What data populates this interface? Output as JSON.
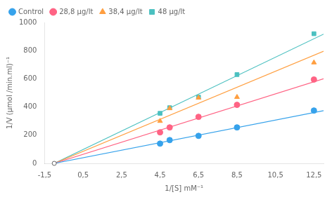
{
  "chart_data": {
    "type": "scatter",
    "xlabel": "1/[S] mM⁻¹",
    "ylabel": "1/V (μmol /min.ml)⁻¹",
    "xlim": [
      -1.5,
      13.0
    ],
    "ylim": [
      0,
      1000
    ],
    "xticks": [
      {
        "value": -1.5,
        "label": "-1,5"
      },
      {
        "value": 0.5,
        "label": "0,5"
      },
      {
        "value": 2.5,
        "label": "2,5"
      },
      {
        "value": 4.5,
        "label": "4,5"
      },
      {
        "value": 6.5,
        "label": "6,5"
      },
      {
        "value": 8.5,
        "label": "8,5"
      },
      {
        "value": 10.5,
        "label": "10,5"
      },
      {
        "value": 12.5,
        "label": "12,5"
      }
    ],
    "yticks": [
      0,
      200,
      400,
      600,
      800,
      1000
    ],
    "grid": false,
    "legend": "upper left",
    "convergence_point": {
      "x": -1.0,
      "y": 0,
      "color": "#666666"
    },
    "series": [
      {
        "name": "Control",
        "color": "#36a2eb",
        "marker": "o",
        "x": [
          4.5,
          5.0,
          6.5,
          8.5,
          12.5
        ],
        "values": [
          140,
          165,
          195,
          255,
          375
        ],
        "fit_x": [
          -1.0,
          13.0
        ],
        "fit_values": [
          0,
          374.0083997874
        ]
      },
      {
        "name": "28,8 μg/lt",
        "color": "#ff6384",
        "marker": "o",
        "x": [
          4.5,
          5.0,
          6.5,
          8.5,
          12.5
        ],
        "values": [
          220,
          255,
          330,
          415,
          595
        ],
        "fit_x": [
          -1.0,
          13.0
        ],
        "fit_values": [
          0,
          599.9231968814
        ]
      },
      {
        "name": "38,4 μg/lt",
        "color": "#ff9f40",
        "marker": "^",
        "x": [
          4.5,
          5.0,
          6.5,
          8.5,
          12.5
        ],
        "values": [
          300,
          390,
          465,
          470,
          715
        ],
        "fit_x": [
          -1.0,
          13.0
        ],
        "fit_values": [
          0,
          795.1498848132
        ]
      },
      {
        "name": "48 μg/lt",
        "color": "#4bc0c0",
        "marker": "s",
        "x": [
          4.5,
          5.0,
          6.5,
          8.5,
          12.5
        ],
        "values": [
          355,
          395,
          470,
          630,
          920
        ],
        "fit_x": [
          -1.0,
          13.0
        ],
        "fit_values": [
          0,
          917.026298069
        ]
      }
    ]
  }
}
